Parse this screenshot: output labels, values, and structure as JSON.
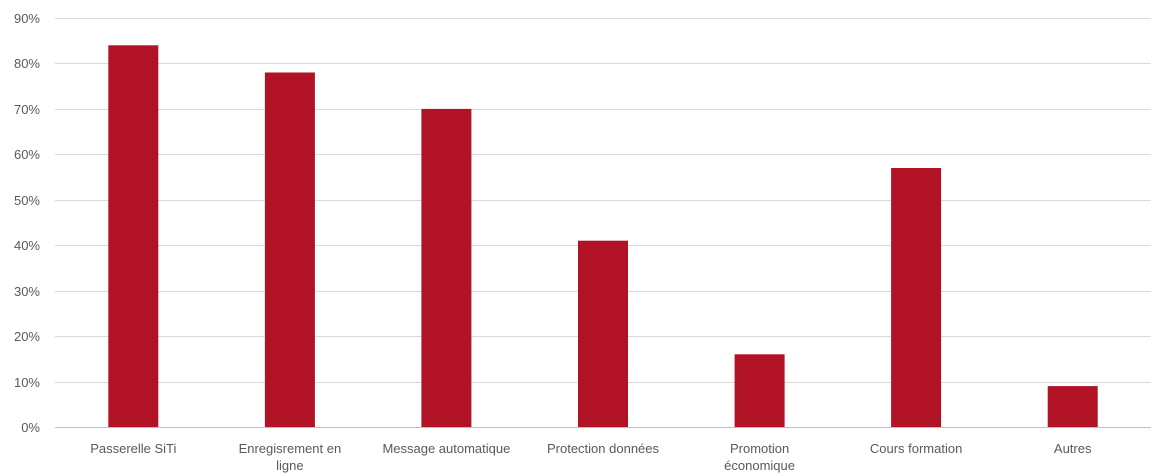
{
  "chart_data": {
    "type": "bar",
    "title": "",
    "xlabel": "",
    "ylabel": "",
    "categories": [
      [
        "Passerelle SiTi"
      ],
      [
        "Enregisrement en",
        "ligne"
      ],
      [
        "Message automatique"
      ],
      [
        "Protection données"
      ],
      [
        "Promotion",
        "économique"
      ],
      [
        "Cours formation"
      ],
      [
        "Autres"
      ]
    ],
    "values": [
      84,
      78,
      70,
      41,
      16,
      57,
      9
    ],
    "ylim": [
      0,
      90
    ],
    "yticks": [
      0,
      10,
      20,
      30,
      40,
      50,
      60,
      70,
      80,
      90
    ],
    "ytick_labels": [
      "0%",
      "10%",
      "20%",
      "30%",
      "40%",
      "50%",
      "60%",
      "70%",
      "80%",
      "90%"
    ],
    "grid": true,
    "legend": "none",
    "bar_color": "#b11226",
    "grid_color": "#d9d9d9",
    "axis_color": "#bfbfbf",
    "label_color": "#595959"
  }
}
